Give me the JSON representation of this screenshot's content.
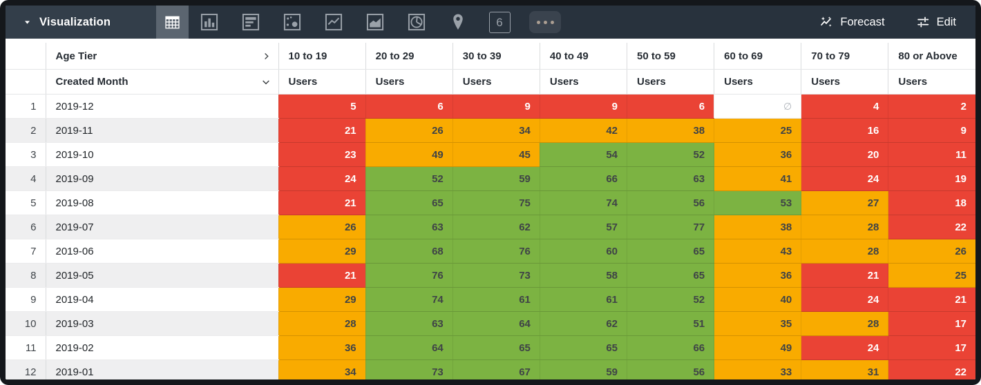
{
  "toolbar": {
    "title": "Visualization",
    "viz_types": [
      "table",
      "column-chart",
      "bar-chart",
      "scatter",
      "line-chart",
      "area-chart",
      "pie-chart",
      "map",
      "single-value",
      "more"
    ],
    "selected_viz": "table",
    "single_value_icon_label": "6",
    "forecast_label": "Forecast",
    "edit_label": "Edit"
  },
  "table": {
    "pivot_field": "Age Tier",
    "row_field": "Created Month",
    "measure_label": "Users",
    "null_symbol": "∅",
    "age_tiers": [
      "10 to 19",
      "20 to 29",
      "30 to 39",
      "40 to 49",
      "50 to 59",
      "60 to 69",
      "70 to 79",
      "80 or Above"
    ],
    "rows": [
      {
        "num": "1",
        "month": "2019-12",
        "values": [
          5,
          6,
          9,
          9,
          6,
          null,
          4,
          2
        ],
        "colors": [
          "r",
          "r",
          "r",
          "r",
          "r",
          "n",
          "r",
          "r"
        ]
      },
      {
        "num": "2",
        "month": "2019-11",
        "values": [
          21,
          26,
          34,
          42,
          38,
          25,
          16,
          9
        ],
        "colors": [
          "r",
          "o",
          "o",
          "o",
          "o",
          "o",
          "r",
          "r"
        ]
      },
      {
        "num": "3",
        "month": "2019-10",
        "values": [
          23,
          49,
          45,
          54,
          52,
          36,
          20,
          11
        ],
        "colors": [
          "r",
          "o",
          "o",
          "g",
          "g",
          "o",
          "r",
          "r"
        ]
      },
      {
        "num": "4",
        "month": "2019-09",
        "values": [
          24,
          52,
          59,
          66,
          63,
          41,
          24,
          19
        ],
        "colors": [
          "r",
          "g",
          "g",
          "g",
          "g",
          "o",
          "r",
          "r"
        ]
      },
      {
        "num": "5",
        "month": "2019-08",
        "values": [
          21,
          65,
          75,
          74,
          56,
          53,
          27,
          18
        ],
        "colors": [
          "r",
          "g",
          "g",
          "g",
          "g",
          "g",
          "o",
          "r"
        ]
      },
      {
        "num": "6",
        "month": "2019-07",
        "values": [
          26,
          63,
          62,
          57,
          77,
          38,
          28,
          22
        ],
        "colors": [
          "o",
          "g",
          "g",
          "g",
          "g",
          "o",
          "o",
          "r"
        ]
      },
      {
        "num": "7",
        "month": "2019-06",
        "values": [
          29,
          68,
          76,
          60,
          65,
          43,
          28,
          26
        ],
        "colors": [
          "o",
          "g",
          "g",
          "g",
          "g",
          "o",
          "o",
          "o"
        ]
      },
      {
        "num": "8",
        "month": "2019-05",
        "values": [
          21,
          76,
          73,
          58,
          65,
          36,
          21,
          25
        ],
        "colors": [
          "r",
          "g",
          "g",
          "g",
          "g",
          "o",
          "r",
          "o"
        ]
      },
      {
        "num": "9",
        "month": "2019-04",
        "values": [
          29,
          74,
          61,
          61,
          52,
          40,
          24,
          21
        ],
        "colors": [
          "o",
          "g",
          "g",
          "g",
          "g",
          "o",
          "r",
          "r"
        ]
      },
      {
        "num": "10",
        "month": "2019-03",
        "values": [
          28,
          63,
          64,
          62,
          51,
          35,
          28,
          17
        ],
        "colors": [
          "o",
          "g",
          "g",
          "g",
          "g",
          "o",
          "o",
          "r"
        ]
      },
      {
        "num": "11",
        "month": "2019-02",
        "values": [
          36,
          64,
          65,
          65,
          66,
          49,
          24,
          17
        ],
        "colors": [
          "o",
          "g",
          "g",
          "g",
          "g",
          "o",
          "r",
          "r"
        ]
      },
      {
        "num": "12",
        "month": "2019-01",
        "values": [
          34,
          73,
          67,
          59,
          56,
          33,
          31,
          22
        ],
        "colors": [
          "o",
          "g",
          "g",
          "g",
          "g",
          "o",
          "o",
          "r"
        ]
      }
    ]
  },
  "colors": {
    "cell_red": "#EA4335",
    "cell_orange": "#F9AB00",
    "cell_green": "#7CB342",
    "toolbar_bg": "#28323D",
    "toolbar_section_bg": "#333E4A",
    "selected_tile_bg": "#5B6570",
    "row_stripe": "#EFEFF0"
  }
}
